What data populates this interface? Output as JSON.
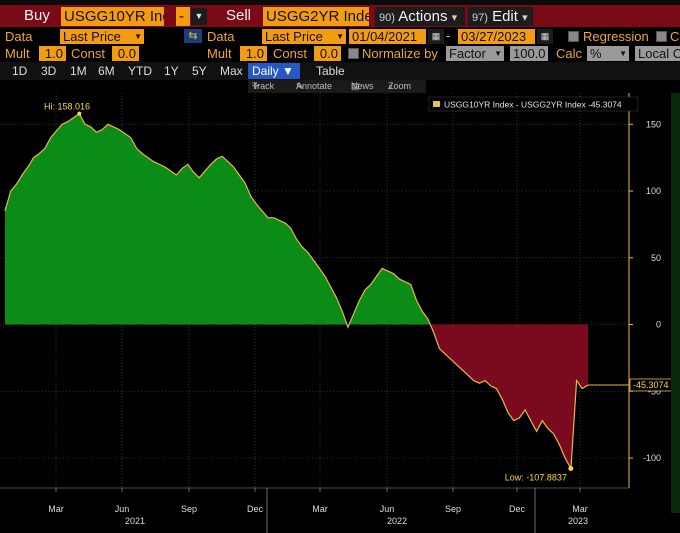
{
  "toolbar": {
    "buy_label": "Buy",
    "buy_ticker": "USGG10YR Inc",
    "minus_label": "-",
    "sell_label": "Sell",
    "sell_ticker": "USGG2YR Inde",
    "actions_num": "90)",
    "actions_label": "Actions",
    "edit_num": "97)",
    "edit_label": "Edit"
  },
  "row2": {
    "data1_label": "Data",
    "data1_value": "Last Price",
    "data2_label": "Data",
    "data2_value": "Last Price",
    "start_date": "01/04/2021",
    "end_date": "03/27/2023",
    "regression_label": "Regression",
    "co_label": "Co"
  },
  "row3": {
    "mult1_label": "Mult",
    "mult1_value": "1.0",
    "const1_label": "Const",
    "const1_value": "0.0",
    "mult2_label": "Mult",
    "mult2_value": "1.0",
    "const2_label": "Const",
    "const2_value": "0.0",
    "normalize_label": "Normalize by",
    "normalize_value": "Factor",
    "factor_value": "100.0",
    "calc_label": "Calc",
    "calc_value": "%",
    "local_label": "Local C"
  },
  "tabs": [
    {
      "label": "1D"
    },
    {
      "label": "3D"
    },
    {
      "label": "1M"
    },
    {
      "label": "6M"
    },
    {
      "label": "YTD"
    },
    {
      "label": "1Y"
    },
    {
      "label": "5Y"
    },
    {
      "label": "Max"
    },
    {
      "label": "Daily ▼"
    },
    {
      "label": "Table"
    }
  ],
  "subtools": {
    "track": "Track",
    "annotate": "Annotate",
    "news": "News",
    "zoom": "Zoom"
  },
  "colors": {
    "positive_fill": "#0b8c17",
    "negative_fill": "#7a0b1f",
    "line": "#e8b848",
    "accent": "#f39c11"
  },
  "chart_data": {
    "type": "area",
    "legend": "USGG10YR Index - USGG2YR Index -45.3074",
    "last_value_label": "-45.3074",
    "last_value": -45.3074,
    "high_label": "Hi: 158.016",
    "high_value": 158.016,
    "low_label": "Low: -107.8837",
    "low_value": -107.8837,
    "ylim": [
      -125,
      175
    ],
    "yticks": [
      150,
      100,
      50,
      0,
      -50,
      -100
    ],
    "ytick_labels": [
      "150",
      "100",
      "50",
      "0",
      "-50",
      "-100"
    ],
    "month_labels": [
      "Mar",
      "Jun",
      "Sep",
      "Dec",
      "Mar",
      "Jun",
      "Sep",
      "Dec",
      "Mar"
    ],
    "year_labels": [
      "2021",
      "2022",
      "2023"
    ],
    "series": [
      {
        "values": [
          85,
          100,
          105,
          112,
          118,
          125,
          128,
          132,
          140,
          145,
          150,
          152,
          155,
          158,
          150,
          148,
          144,
          146,
          150,
          148,
          146,
          143,
          140,
          132,
          128,
          125,
          122,
          120,
          118,
          115,
          112,
          117,
          120,
          114,
          110,
          115,
          120,
          124,
          126,
          122,
          118,
          112,
          106,
          96,
          90,
          85,
          80,
          80,
          78,
          76,
          72,
          64,
          58,
          54,
          48,
          42,
          36,
          28,
          20,
          10,
          -2,
          8,
          18,
          26,
          30,
          36,
          42,
          40,
          38,
          34,
          32,
          30,
          18,
          10,
          4,
          -6,
          -18,
          -22,
          -26,
          -30,
          -34,
          -38,
          -42,
          -44,
          -42,
          -46,
          -48,
          -56,
          -66,
          -72,
          -70,
          -64,
          -72,
          -80,
          -72,
          -78,
          -82,
          -90,
          -100,
          -107.88,
          -42,
          -48,
          -45.3
        ]
      }
    ]
  }
}
